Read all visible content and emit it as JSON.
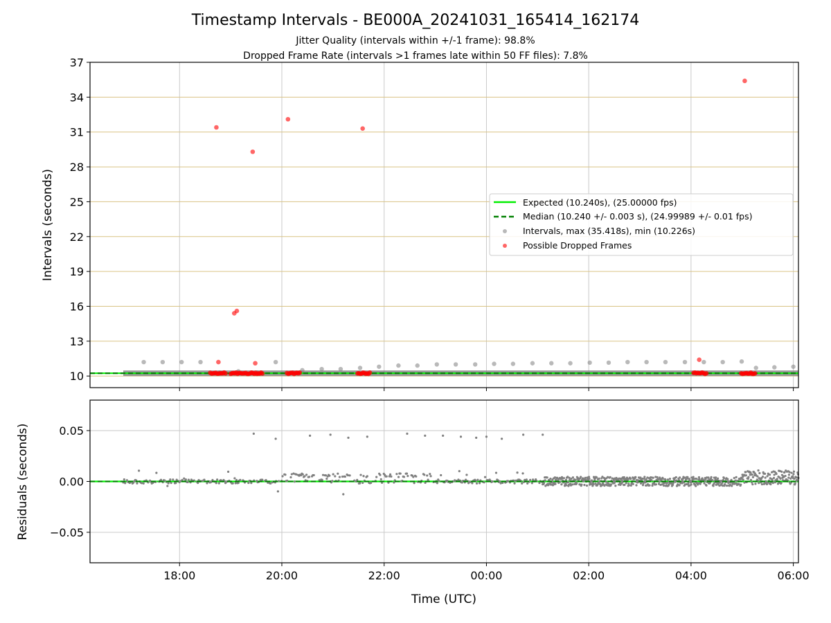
{
  "chart_data": [
    {
      "type": "scatter",
      "title": "Timestamp Intervals - BE000A_20241031_165414_162174",
      "subtitle_lines": [
        "Jitter Quality (intervals within +/-1 frame): 98.8%",
        "Dropped Frame Rate (intervals >1 frames late within 50 FF files): 7.8%"
      ],
      "xlabel": "",
      "ylabel": "Intervals (seconds)",
      "x_range_hours": [
        16.25,
        30.1
      ],
      "ylim": [
        9,
        37
      ],
      "y_ticks": [
        10,
        13,
        16,
        19,
        22,
        25,
        28,
        31,
        34,
        37
      ],
      "x_ticks": [
        18,
        20,
        22,
        24,
        26,
        28,
        30
      ],
      "x_tick_labels": [
        "18:00",
        "20:00",
        "22:00",
        "00:00",
        "02:00",
        "04:00",
        "06:00"
      ],
      "grid": true,
      "legend_position": "center-right",
      "colors": {
        "expected": "#00ee00",
        "median": "#008000",
        "intervals": "#808080",
        "dropped": "#ff0000",
        "hgrid": "#d9c384",
        "vgrid": "#c8c8c8"
      },
      "series": [
        {
          "name": "Expected (10.240s), (25.00000 fps)",
          "kind": "hline",
          "y": 10.24
        },
        {
          "name": "Median (10.240 +/- 0.003 s), (24.99989 +/- 0.01 fps)",
          "kind": "hline-dashed",
          "y": 10.24
        },
        {
          "name": "Intervals, max (35.418s), min (10.226s)",
          "kind": "scatter",
          "x": [
            17.3,
            17.67,
            18.04,
            18.41,
            18.78,
            19.15,
            19.52,
            19.88,
            20.22,
            20.4,
            20.78,
            21.15,
            21.53,
            21.9,
            22.28,
            22.65,
            23.03,
            23.4,
            23.78,
            24.15,
            24.52,
            24.9,
            25.27,
            25.64,
            26.02,
            26.39,
            26.76,
            27.13,
            27.5,
            27.88,
            28.25,
            28.62,
            28.99,
            29.27,
            29.63,
            30.0
          ],
          "y": [
            11.2,
            11.2,
            11.2,
            11.2,
            10.3,
            10.4,
            10.3,
            11.2,
            10.3,
            10.5,
            10.6,
            10.6,
            10.7,
            10.8,
            10.9,
            10.9,
            11.0,
            11.0,
            11.0,
            11.05,
            11.05,
            11.1,
            11.1,
            11.1,
            11.15,
            11.15,
            11.2,
            11.2,
            11.2,
            11.2,
            11.2,
            11.2,
            11.25,
            10.7,
            10.75,
            10.8
          ]
        },
        {
          "name": "Possible Dropped Frames",
          "kind": "scatter",
          "x": [
            18.72,
            18.76,
            19.07,
            19.12,
            19.43,
            19.48,
            20.12,
            21.58,
            28.16,
            29.05
          ],
          "y": [
            31.4,
            11.2,
            15.4,
            15.6,
            29.3,
            11.1,
            32.1,
            31.3,
            11.4,
            35.4
          ],
          "clusters_at_y": 10.24,
          "cluster_x": [
            [
              18.6,
              18.9
            ],
            [
              19.0,
              19.35
            ],
            [
              19.38,
              19.62
            ],
            [
              20.1,
              20.35
            ],
            [
              21.48,
              21.72
            ],
            [
              28.05,
              28.3
            ],
            [
              28.98,
              29.25
            ]
          ]
        }
      ]
    },
    {
      "type": "scatter",
      "title": "",
      "xlabel": "Time (UTC)",
      "ylabel": "Residuals (seconds)",
      "ylim": [
        -0.08,
        0.08
      ],
      "y_ticks": [
        -0.05,
        0.0,
        0.05
      ],
      "y_tick_labels": [
        "−0.05",
        "0.00",
        "0.05"
      ],
      "x_ticks": [
        18,
        20,
        22,
        24,
        26,
        28,
        30
      ],
      "x_tick_labels": [
        "18:00",
        "20:00",
        "22:00",
        "00:00",
        "02:00",
        "04:00",
        "06:00"
      ],
      "grid": true,
      "series": [
        {
          "name": "",
          "kind": "hline",
          "y": 0.0
        },
        {
          "name": "",
          "kind": "hline-dashed",
          "y": 0.0
        },
        {
          "name": "",
          "kind": "scatter",
          "outlier_x": [
            19.45,
            19.88,
            20.55,
            20.95,
            21.3,
            21.67,
            22.45,
            22.8,
            23.15,
            23.5,
            23.8,
            24.0,
            24.3,
            24.72,
            25.1
          ],
          "outlier_y": [
            0.047,
            0.042,
            0.045,
            0.046,
            0.043,
            0.044,
            0.047,
            0.045,
            0.045,
            0.044,
            0.043,
            0.044,
            0.042,
            0.046,
            0.046
          ]
        }
      ]
    }
  ]
}
